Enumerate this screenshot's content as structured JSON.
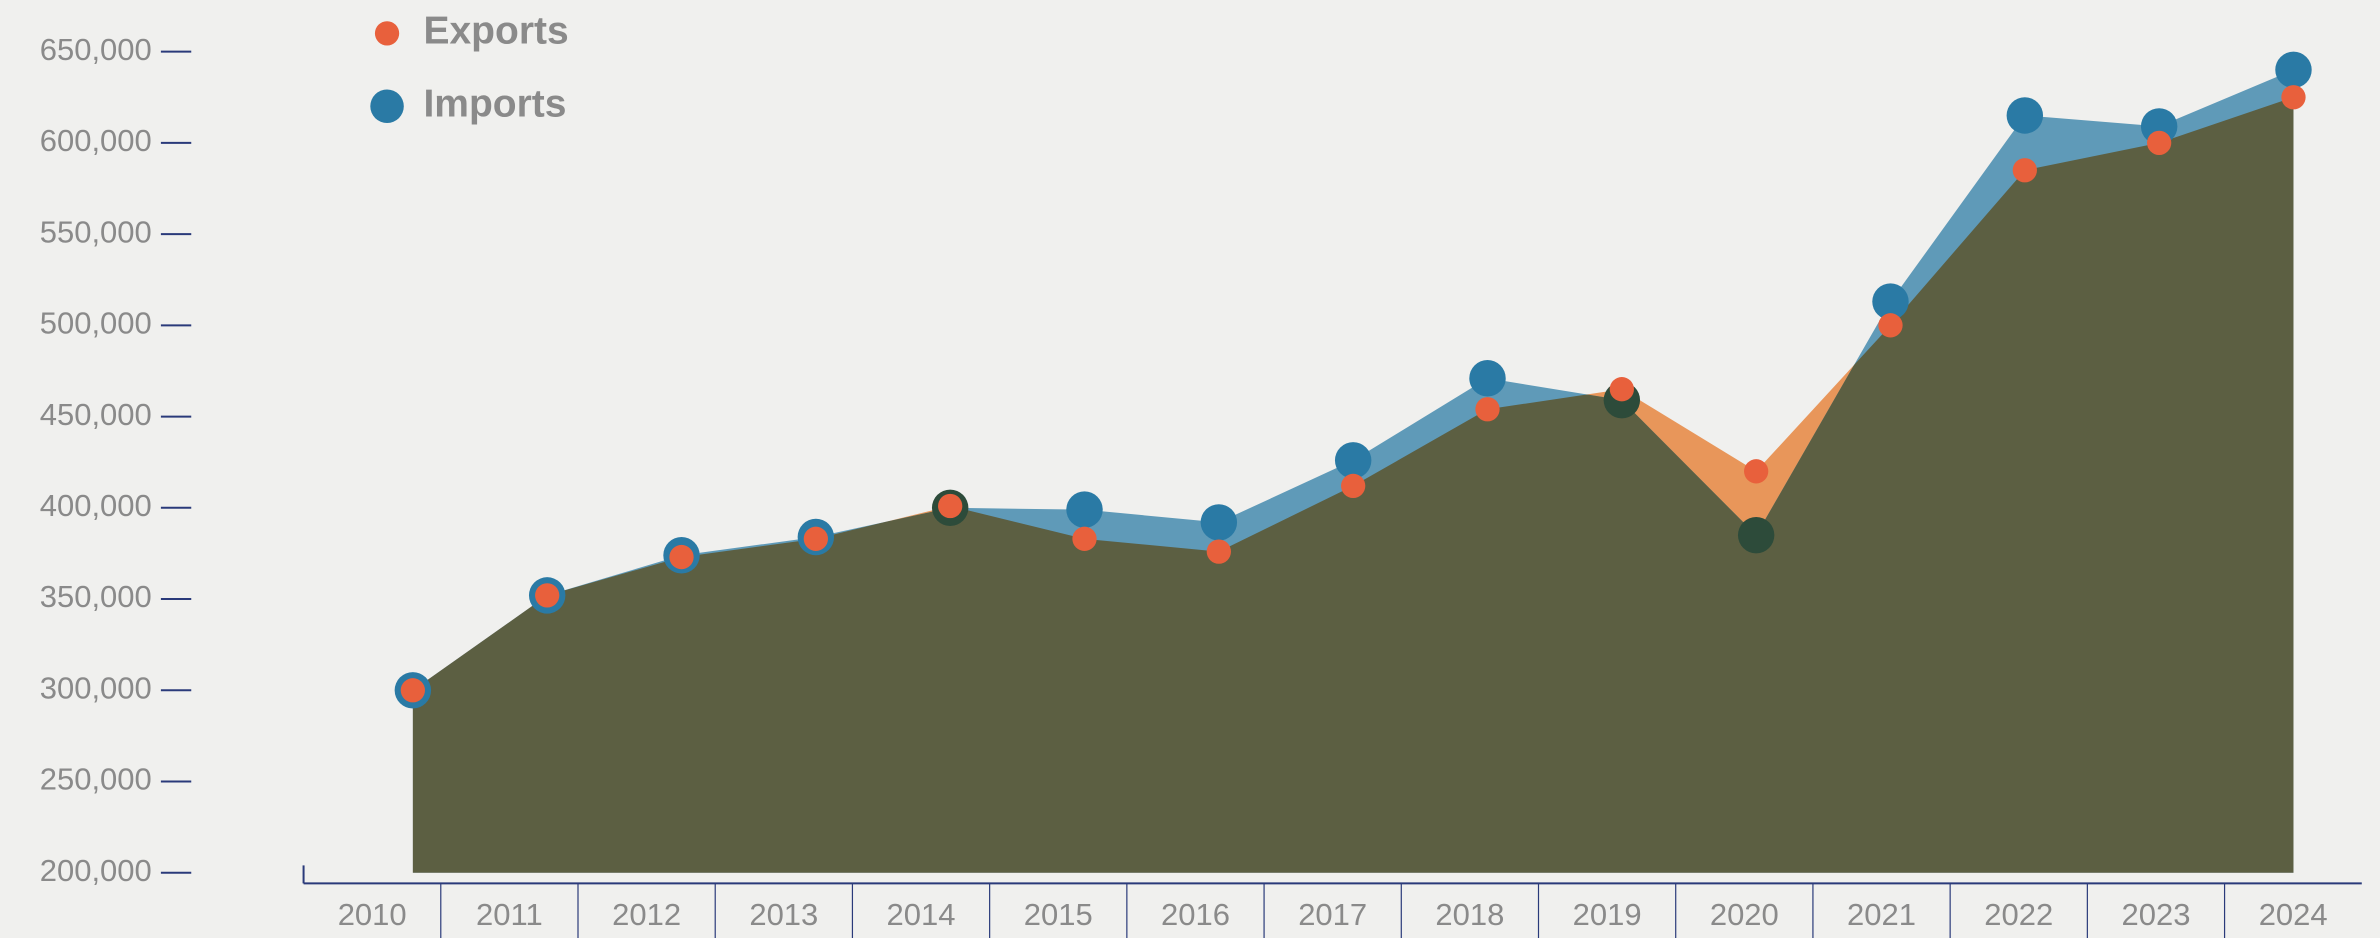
{
  "chart_data": {
    "type": "area",
    "categories": [
      "2010",
      "2011",
      "2012",
      "2013",
      "2014",
      "2015",
      "2016",
      "2017",
      "2018",
      "2019",
      "2020",
      "2021",
      "2022",
      "2023",
      "2024"
    ],
    "series": [
      {
        "name": "Exports",
        "color": "#e8965a",
        "marker_color": "#e8603c",
        "values": [
          300000,
          352000,
          373000,
          383000,
          401000,
          383000,
          376000,
          412000,
          454000,
          465000,
          420000,
          500000,
          585000,
          600000,
          625000
        ]
      },
      {
        "name": "Imports",
        "color": "#5f9ab8",
        "marker_color": "#2a7aa5",
        "values": [
          300000,
          352000,
          374000,
          384000,
          400000,
          399000,
          392000,
          426000,
          471000,
          459000,
          385000,
          513000,
          615000,
          609000,
          640000
        ]
      }
    ],
    "overlap_color": "#5c5f42",
    "ylim": [
      200000,
      650000
    ],
    "yticks": [
      {
        "value": 200000,
        "label": "200,000"
      },
      {
        "value": 250000,
        "label": "250,000"
      },
      {
        "value": 300000,
        "label": "300,000"
      },
      {
        "value": 350000,
        "label": "350,000"
      },
      {
        "value": 400000,
        "label": "400,000"
      },
      {
        "value": 450000,
        "label": "450,000"
      },
      {
        "value": 500000,
        "label": "500,000"
      },
      {
        "value": 550000,
        "label": "550,000"
      },
      {
        "value": 600000,
        "label": "600,000"
      },
      {
        "value": 650000,
        "label": "650,000"
      }
    ],
    "legend": "top-left"
  }
}
